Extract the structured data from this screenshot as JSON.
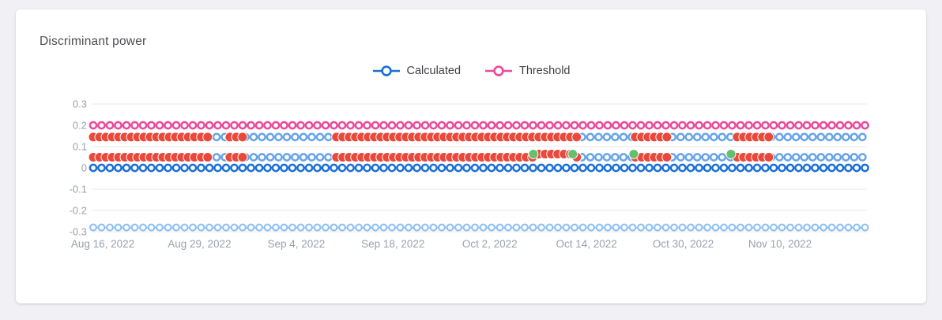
{
  "card": {
    "title": "Discriminant power"
  },
  "legend": [
    {
      "label": "Calculated",
      "color": "#1a70d6"
    },
    {
      "label": "Threshold",
      "color": "#ea4a9c"
    }
  ],
  "chart_data": {
    "type": "scatter",
    "title": "Discriminant power",
    "grid": true,
    "legend_position": "top-center",
    "legend_entries": [
      "Calculated",
      "Threshold"
    ],
    "ylim": [
      -0.3,
      0.3
    ],
    "y_ticks": [
      0.3,
      0.2,
      0.1,
      0,
      -0.1,
      -0.2,
      -0.3
    ],
    "x_tick_labels": [
      "Aug 16, 2022",
      "Aug 29, 2022",
      "Sep 4, 2022",
      "Sep 18, 2022",
      "Oct 2, 2022",
      "Oct 14, 2022",
      "Oct 30, 2022",
      "Nov 10, 2022"
    ],
    "colors": {
      "calculated": "#1a70d6",
      "threshold": "#ea4a9c",
      "ok": "#67a4e8",
      "alert": "#e9483a",
      "recovered": "#67bf6d",
      "lower_band": "#90c0f2"
    },
    "series": [
      {
        "id": "threshold",
        "y": 0.2,
        "marker": "open-circle-line",
        "color_key": "threshold",
        "spacing": 10.5,
        "segments": [
          [
            0,
            1
          ]
        ]
      },
      {
        "id": "status-band-upper",
        "y": 0.145,
        "marker": "mixed",
        "spacing": 10.5,
        "alert_spacing": 8,
        "alert_segments": [
          [
            0,
            0.135
          ],
          [
            0.14,
            0.149
          ],
          [
            0.177,
            0.197
          ],
          [
            0.315,
            0.633
          ],
          [
            0.702,
            0.75
          ],
          [
            0.834,
            0.878
          ]
        ],
        "ok_segments": [
          [
            0.135,
            0.14
          ],
          [
            0.149,
            0.177
          ],
          [
            0.197,
            0.315
          ],
          [
            0.633,
            0.702
          ],
          [
            0.75,
            0.834
          ],
          [
            0.878,
            1
          ]
        ],
        "green_points": []
      },
      {
        "id": "status-band-lower",
        "y": 0.05,
        "marker": "mixed",
        "spacing": 10.5,
        "alert_spacing": 8,
        "alert_segments": [
          [
            0,
            0.135
          ],
          [
            0.14,
            0.149
          ],
          [
            0.177,
            0.197
          ],
          [
            0.315,
            0.633
          ],
          [
            0.702,
            0.75
          ],
          [
            0.834,
            0.878
          ]
        ],
        "ok_segments": [
          [
            0.135,
            0.14
          ],
          [
            0.149,
            0.177
          ],
          [
            0.197,
            0.315
          ],
          [
            0.633,
            0.702
          ],
          [
            0.75,
            0.834
          ],
          [
            0.878,
            1
          ]
        ],
        "green_points": [
          0.57,
          0.621,
          0.7,
          0.826
        ],
        "raised_segment": [
          0.575,
          0.618
        ],
        "raise_by": 0.015
      },
      {
        "id": "calculated",
        "y": 0,
        "marker": "open-circle-line",
        "color_key": "calculated",
        "spacing": 10.5,
        "segments": [
          [
            0,
            1
          ]
        ]
      },
      {
        "id": "lower-band",
        "y": -0.28,
        "marker": "open-circle-line",
        "color_key": "lower_band",
        "spacing": 10.5,
        "segments": [
          [
            0,
            1
          ]
        ]
      }
    ]
  }
}
